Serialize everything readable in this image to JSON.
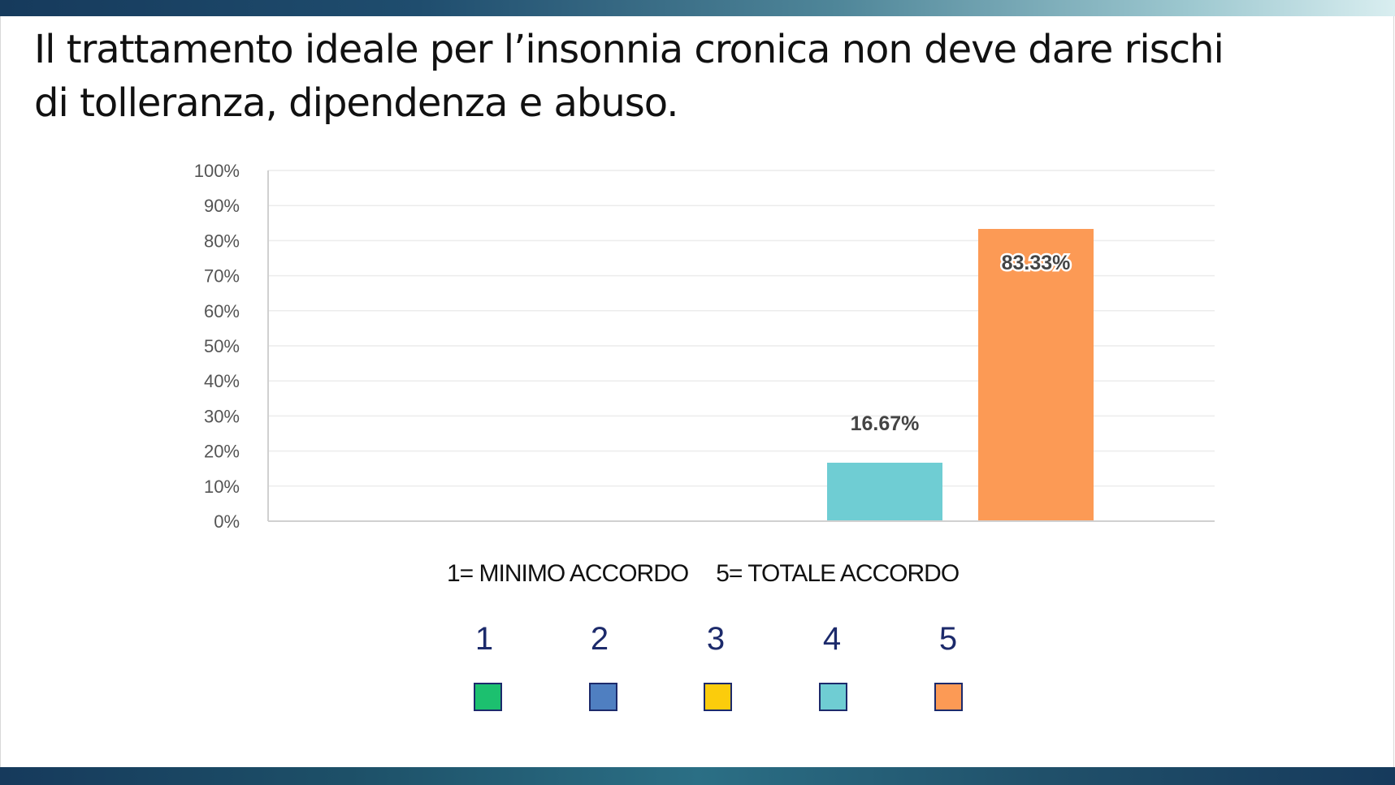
{
  "slide": {
    "title_line1": "Il trattamento ideale per l’insonnia cronica non deve dare rischi",
    "title_line2": "di tolleranza, dipendenza e abuso.",
    "caption_left": "1= MINIMO ACCORDO",
    "caption_right": "5= TOTALE ACCORDO"
  },
  "legend": [
    {
      "label": "1",
      "color": "#1cc06f"
    },
    {
      "label": "2",
      "color": "#4f7fc1"
    },
    {
      "label": "3",
      "color": "#fbcc0c"
    },
    {
      "label": "4",
      "color": "#6fcdd3"
    },
    {
      "label": "5",
      "color": "#fc9a55"
    }
  ],
  "chart_data": {
    "type": "bar",
    "title": "",
    "xlabel": "",
    "ylabel": "",
    "categories": [
      "1",
      "2",
      "3",
      "4",
      "5"
    ],
    "values": [
      0,
      0,
      0,
      16.67,
      83.33
    ],
    "data_labels": [
      "",
      "",
      "",
      "16.67%",
      "83.33%"
    ],
    "colors": [
      "#1cc06f",
      "#4f7fc1",
      "#fbcc0c",
      "#6fcdd3",
      "#fc9a55"
    ],
    "ylim": [
      0,
      100
    ],
    "yticks": [
      "0%",
      "10%",
      "20%",
      "30%",
      "40%",
      "50%",
      "60%",
      "70%",
      "80%",
      "90%",
      "100%"
    ],
    "grid": true,
    "legend_position": "bottom"
  }
}
